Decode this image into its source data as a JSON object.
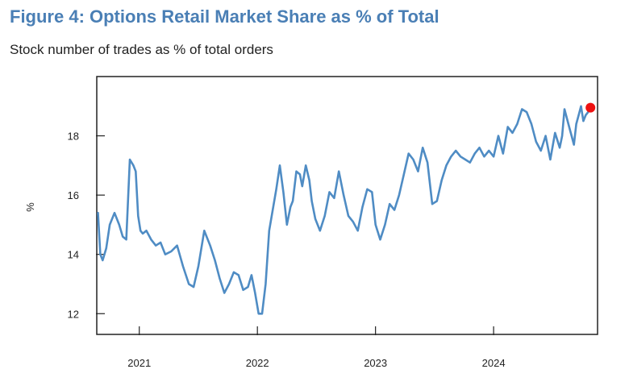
{
  "title": "Figure 4: Options Retail Market Share as % of Total",
  "subtitle": "Stock number of trades as % of total orders",
  "chart_data": {
    "type": "line",
    "title": "Figure 4: Options Retail Market Share as % of Total",
    "subtitle": "Stock number of trades as % of total orders",
    "ylabel": "%",
    "xlabel": "",
    "xlim": [
      2020.64,
      2024.88
    ],
    "ylim": [
      11.3,
      20.0
    ],
    "yticks": [
      12,
      14,
      16,
      18
    ],
    "xticks": [
      2021,
      2022,
      2023,
      2024
    ],
    "ytick_labels": [
      "12",
      "14",
      "16",
      "18"
    ],
    "xtick_labels": [
      "2021",
      "2022",
      "2023",
      "2024"
    ],
    "grid": false,
    "legend": "none",
    "line_color": "#4f8cc4",
    "marker_color": "#ee1111",
    "series": [
      {
        "x": [
          2020.65,
          2020.67,
          2020.69,
          2020.72,
          2020.75,
          2020.79,
          2020.83,
          2020.86,
          2020.89,
          2020.92,
          2020.95,
          2020.97,
          2020.99,
          2021.01,
          2021.03,
          2021.06,
          2021.1,
          2021.14,
          2021.18,
          2021.22,
          2021.27,
          2021.32,
          2021.37,
          2021.42,
          2021.46,
          2021.5,
          2021.55,
          2021.6,
          2021.64,
          2021.68,
          2021.72,
          2021.76,
          2021.8,
          2021.84,
          2021.88,
          2021.92,
          2021.95,
          2021.98,
          2022.01,
          2022.04,
          2022.07,
          2022.1,
          2022.13,
          2022.16,
          2022.19,
          2022.22,
          2022.25,
          2022.28,
          2022.3,
          2022.33,
          2022.36,
          2022.38,
          2022.41,
          2022.44,
          2022.46,
          2022.49,
          2022.53,
          2022.57,
          2022.61,
          2022.65,
          2022.69,
          2022.73,
          2022.77,
          2022.81,
          2022.85,
          2022.89,
          2022.93,
          2022.97,
          2023.0,
          2023.04,
          2023.08,
          2023.12,
          2023.16,
          2023.2,
          2023.24,
          2023.28,
          2023.32,
          2023.36,
          2023.4,
          2023.44,
          2023.48,
          2023.52,
          2023.56,
          2023.6,
          2023.64,
          2023.68,
          2023.72,
          2023.76,
          2023.8,
          2023.84,
          2023.88,
          2023.92,
          2023.96,
          2024.0,
          2024.04,
          2024.08,
          2024.12,
          2024.16,
          2024.2,
          2024.24,
          2024.28,
          2024.32,
          2024.36,
          2024.4,
          2024.44,
          2024.48,
          2024.52,
          2024.56,
          2024.58,
          2024.6,
          2024.62,
          2024.64,
          2024.66,
          2024.68,
          2024.7,
          2024.72,
          2024.74,
          2024.76,
          2024.78,
          2024.8,
          2024.81
        ],
        "y": [
          15.4,
          14.0,
          13.8,
          14.2,
          15.0,
          15.4,
          15.0,
          14.6,
          14.5,
          17.2,
          17.0,
          16.8,
          15.3,
          14.8,
          14.7,
          14.8,
          14.5,
          14.3,
          14.4,
          14.0,
          14.1,
          14.3,
          13.6,
          13.0,
          12.9,
          13.6,
          14.8,
          14.3,
          13.8,
          13.2,
          12.7,
          13.0,
          13.4,
          13.3,
          12.8,
          12.9,
          13.3,
          12.7,
          12.0,
          12.0,
          13.0,
          14.8,
          15.5,
          16.2,
          17.0,
          16.1,
          15.0,
          15.6,
          15.8,
          16.8,
          16.7,
          16.3,
          17.0,
          16.5,
          15.8,
          15.2,
          14.8,
          15.3,
          16.1,
          15.9,
          16.8,
          16.0,
          15.3,
          15.1,
          14.8,
          15.6,
          16.2,
          16.1,
          15.0,
          14.5,
          15.0,
          15.7,
          15.5,
          16.0,
          16.7,
          17.4,
          17.2,
          16.8,
          17.6,
          17.1,
          15.7,
          15.8,
          16.5,
          17.0,
          17.3,
          17.5,
          17.3,
          17.2,
          17.1,
          17.4,
          17.6,
          17.3,
          17.5,
          17.3,
          18.0,
          17.4,
          18.3,
          18.1,
          18.4,
          18.9,
          18.8,
          18.4,
          17.8,
          17.5,
          18.0,
          17.2,
          18.1,
          17.6,
          18.0,
          18.9,
          18.6,
          18.3,
          18.0,
          17.7,
          18.4,
          18.7,
          19.0,
          18.5,
          18.7,
          18.8,
          18.9
        ]
      }
    ],
    "highlight_point": {
      "x": 2024.82,
      "y": 18.95
    }
  }
}
